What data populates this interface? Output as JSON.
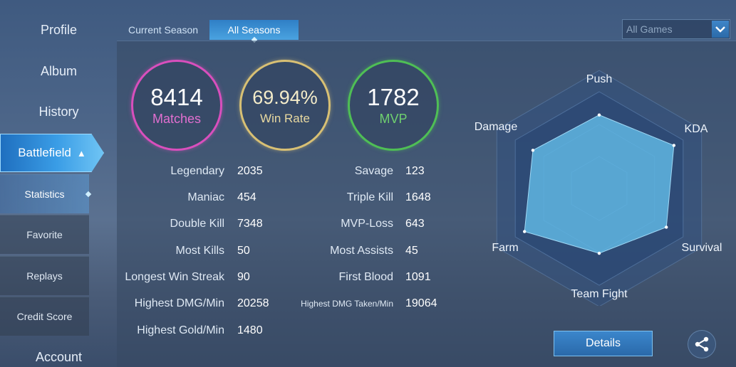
{
  "sidebar": {
    "profile": "Profile",
    "album": "Album",
    "history": "History",
    "battlefield": "Battlefield",
    "battlefield_chevron": "^",
    "sub_items": [
      "Statistics",
      "Favorite",
      "Replays",
      "Credit Score"
    ],
    "account": "Account"
  },
  "tabs": [
    "Current Season",
    "All Seasons"
  ],
  "filter": {
    "selected": "All Games"
  },
  "summary": {
    "matches_value": "8414",
    "matches_label": "Matches",
    "winrate_value": "69.94%",
    "winrate_label": "Win Rate",
    "mvp_value": "1782",
    "mvp_label": "MVP"
  },
  "stats_left": [
    {
      "label": "Legendary",
      "value": "2035"
    },
    {
      "label": "Maniac",
      "value": "454"
    },
    {
      "label": "Double Kill",
      "value": "7348"
    },
    {
      "label": "Most Kills",
      "value": "50"
    },
    {
      "label": "Longest Win Streak",
      "value": "90"
    },
    {
      "label": "Highest DMG/Min",
      "value": "20258"
    },
    {
      "label": "Highest Gold/Min",
      "value": "1480"
    }
  ],
  "stats_right": [
    {
      "label": "Savage",
      "value": "123"
    },
    {
      "label": "Triple Kill",
      "value": "1648"
    },
    {
      "label": "MVP-Loss",
      "value": "643"
    },
    {
      "label": "Most Assists",
      "value": "45"
    },
    {
      "label": "First Blood",
      "value": "1091"
    },
    {
      "label": "Highest DMG Taken/Min",
      "value": "19064"
    }
  ],
  "radar": {
    "axes": [
      "Push",
      "KDA",
      "Survival",
      "Team Fight",
      "Farm",
      "Damage"
    ],
    "values": [
      0.76,
      0.89,
      0.8,
      0.67,
      0.89,
      0.79
    ],
    "fill_color": "#5fb6e3"
  },
  "buttons": {
    "details": "Details"
  },
  "icons": {
    "share": "share-icon",
    "dropdown": "chevron-down-icon"
  }
}
